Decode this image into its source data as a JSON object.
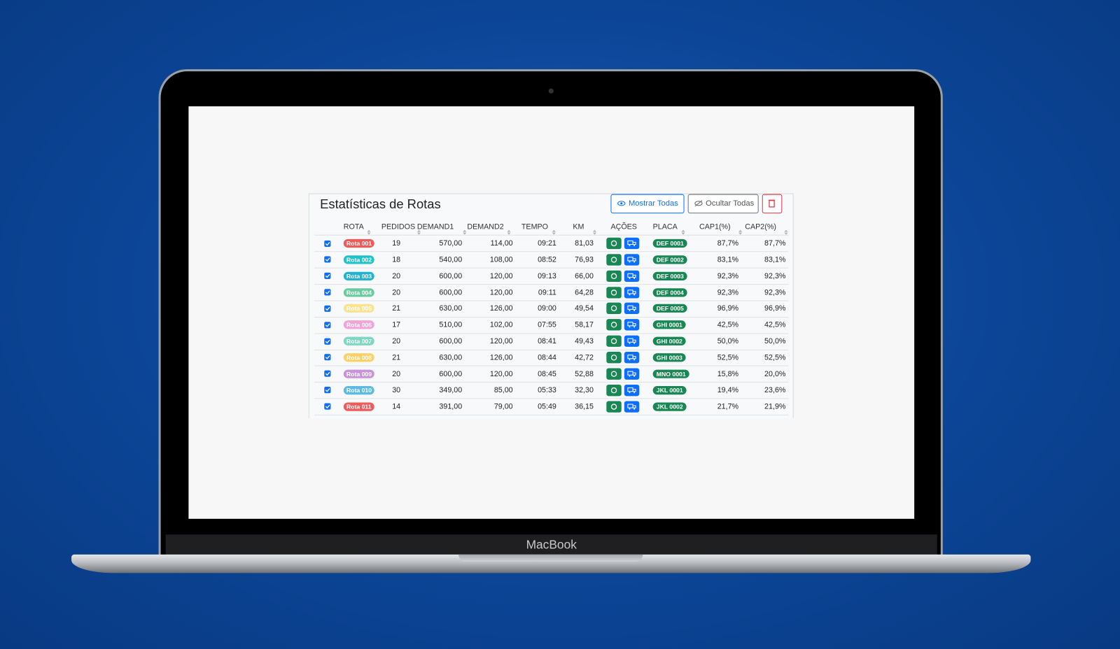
{
  "device_label": "MacBook",
  "panel": {
    "title": "Estatísticas de Rotas",
    "buttons": [
      "Mostrar Todas",
      "Ocultar Todas"
    ]
  },
  "table": {
    "headers": [
      "ROTA",
      "PEDIDOS",
      "DEMAND1",
      "DEMAND2",
      "TEMPO",
      "KM",
      "AÇÕES",
      "PLACA",
      "CAP1(%)",
      "CAP2(%)"
    ],
    "rows": [
      [
        "Rota 001",
        "19",
        "570,00",
        "114,00",
        "09:21",
        "81,03",
        "DEF 0001",
        "87,7%",
        "87,7%"
      ],
      [
        "Rota 002",
        "18",
        "540,00",
        "108,00",
        "08:52",
        "76,93",
        "DEF 0002",
        "83,1%",
        "83,1%"
      ],
      [
        "Rota 003",
        "20",
        "600,00",
        "120,00",
        "09:13",
        "66,00",
        "DEF 0003",
        "92,3%",
        "92,3%"
      ],
      [
        "Rota 004",
        "20",
        "600,00",
        "120,00",
        "09:11",
        "64,28",
        "DEF 0004",
        "92,3%",
        "92,3%"
      ],
      [
        "Rota 005",
        "21",
        "630,00",
        "126,00",
        "09:00",
        "49,54",
        "DEF 0005",
        "96,9%",
        "96,9%"
      ],
      [
        "Rota 006",
        "17",
        "510,00",
        "102,00",
        "07:55",
        "58,17",
        "GHI 0001",
        "42,5%",
        "42,5%"
      ],
      [
        "Rota 007",
        "20",
        "600,00",
        "120,00",
        "08:41",
        "49,43",
        "GHI 0002",
        "50,0%",
        "50,0%"
      ],
      [
        "Rota 008",
        "21",
        "630,00",
        "126,00",
        "08:44",
        "42,72",
        "GHI 0003",
        "52,5%",
        "52,5%"
      ],
      [
        "Rota 009",
        "20",
        "600,00",
        "120,00",
        "08:45",
        "52,88",
        "MNO 0001",
        "15,8%",
        "20,0%"
      ],
      [
        "Rota 010",
        "30",
        "349,00",
        "85,00",
        "05:33",
        "32,30",
        "JKL 0001",
        "19,4%",
        "23,6%"
      ],
      [
        "Rota 011",
        "14",
        "391,00",
        "79,00",
        "05:49",
        "36,15",
        "JKL 0002",
        "21,7%",
        "21,9%"
      ]
    ]
  }
}
